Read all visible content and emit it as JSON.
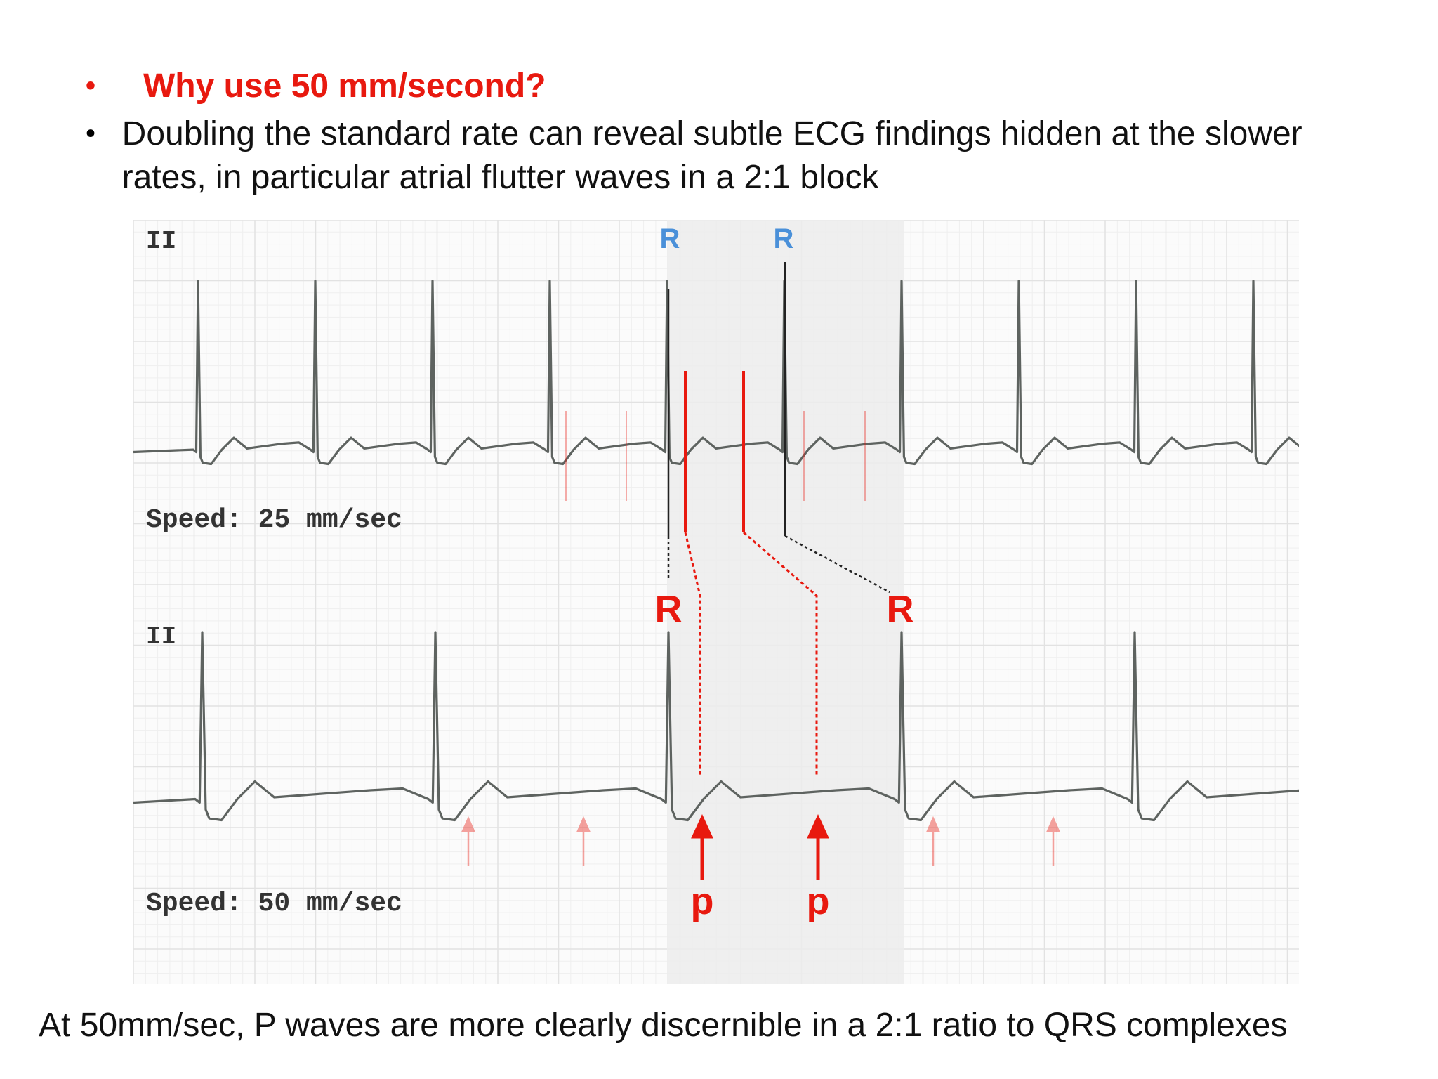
{
  "slide": {
    "heading": "Why use 50 mm/second?",
    "body": "Doubling the standard rate can reveal subtle ECG findings hidden at the slower rates, in particular atrial flutter waves in a 2:1 block",
    "bullet_symbol": "•",
    "caption": "At 50mm/sec, P waves are more clearly discernible in a 2:1 ratio to QRS complexes"
  },
  "ecg": {
    "top_strip": {
      "lead": "II",
      "speed": "Speed: 25 mm/sec",
      "r_label_1": "R",
      "r_label_2": "R"
    },
    "bottom_strip": {
      "lead": "II",
      "speed": "Speed: 50 mm/sec",
      "r_label_1": "R",
      "r_label_2": "R",
      "p_label_1": "p",
      "p_label_2": "p"
    }
  },
  "colors": {
    "heading": "#e8190f",
    "trace": "#5e6360",
    "grid": "#e6e6e6",
    "r_top": "#4a90d9",
    "r_bottom": "#e8190f",
    "marker": "#e8190f",
    "highlight": "#ececec"
  }
}
